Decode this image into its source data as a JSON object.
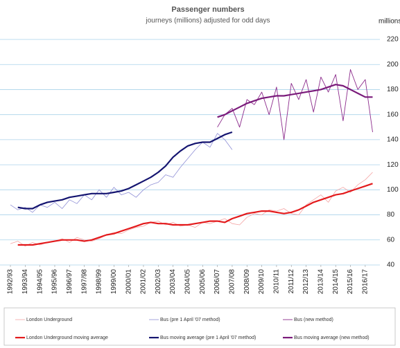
{
  "chart_data": {
    "type": "line",
    "title": "Passenger numbers",
    "subtitle": "journeys (millions) adjusted for odd days",
    "y_axis_label": "millions",
    "x": [
      1992,
      1992.5,
      1993,
      1993.5,
      1994,
      1994.5,
      1995,
      1995.5,
      1996,
      1996.5,
      1997,
      1997.5,
      1998,
      1998.5,
      1999,
      1999.5,
      2000,
      2000.5,
      2001,
      2001.5,
      2002,
      2002.5,
      2003,
      2003.5,
      2004,
      2004.5,
      2005,
      2005.5,
      2006,
      2006.5,
      2007,
      2007.5,
      2008,
      2008.5,
      2009,
      2009.5,
      2010,
      2010.5,
      2011,
      2011.5,
      2012,
      2012.5,
      2013,
      2013.5,
      2014,
      2014.5,
      2015,
      2015.5,
      2016,
      2016.5
    ],
    "series": [
      {
        "name": "London Underground",
        "color": "#f4a3a3",
        "width": 0.8,
        "values": [
          57,
          59,
          55,
          58,
          56,
          58,
          59,
          61,
          58,
          62,
          60,
          59,
          61,
          64,
          66,
          65,
          68,
          70,
          71,
          74,
          75,
          72,
          74,
          71,
          72,
          70,
          74,
          73,
          75,
          77,
          73,
          72,
          78,
          81,
          80,
          84,
          83,
          85,
          81,
          80,
          88,
          92,
          96,
          90,
          99,
          102,
          98,
          104,
          108,
          114
        ]
      },
      {
        "name": "Bus (pre 1 April '07 method)",
        "color": "#8f8fd6",
        "width": 0.8,
        "values": [
          88,
          84,
          86,
          82,
          88,
          86,
          90,
          85,
          92,
          89,
          96,
          92,
          100,
          94,
          102,
          96,
          98,
          94,
          100,
          104,
          106,
          112,
          110,
          118,
          125,
          132,
          138,
          134,
          145,
          140,
          132,
          null,
          null,
          null,
          null,
          null,
          null,
          null,
          null,
          null,
          null,
          null,
          null,
          null,
          null,
          null,
          null,
          null,
          null,
          null
        ]
      },
      {
        "name": "Bus (new method)",
        "color": "#8b2a8b",
        "width": 0.9,
        "values": [
          null,
          null,
          null,
          null,
          null,
          null,
          null,
          null,
          null,
          null,
          null,
          null,
          null,
          null,
          null,
          null,
          null,
          null,
          null,
          null,
          null,
          null,
          null,
          null,
          null,
          null,
          null,
          null,
          150,
          160,
          165,
          150,
          172,
          168,
          178,
          160,
          182,
          140,
          185,
          172,
          188,
          162,
          190,
          178,
          192,
          155,
          196,
          180,
          188,
          146
        ]
      },
      {
        "name": "London Underground moving average",
        "color": "#e31a1c",
        "width": 2.2,
        "values": [
          null,
          56,
          56,
          56,
          57,
          58,
          59,
          60,
          60,
          60,
          59,
          60,
          62,
          64,
          65,
          67,
          69,
          71,
          73,
          74,
          73,
          73,
          72,
          72,
          72,
          73,
          74,
          75,
          75,
          74,
          77,
          79,
          81,
          82,
          83,
          83,
          82,
          81,
          82,
          84,
          87,
          90,
          92,
          94,
          96,
          97,
          99,
          101,
          103,
          105
        ]
      },
      {
        "name": "Bus moving average (pre 1 April '07 method)",
        "color": "#141470",
        "width": 2.2,
        "values": [
          null,
          86,
          85,
          85,
          88,
          90,
          91,
          92,
          94,
          95,
          96,
          97,
          97,
          97,
          98,
          99,
          101,
          104,
          107,
          110,
          114,
          119,
          126,
          131,
          135,
          137,
          138,
          138,
          141,
          144,
          146,
          null,
          null,
          null,
          null,
          null,
          null,
          null,
          null,
          null,
          null,
          null,
          null,
          null,
          null,
          null,
          null,
          null,
          null,
          null
        ]
      },
      {
        "name": "Bus moving average (new method)",
        "color": "#7a1a7a",
        "width": 2.2,
        "values": [
          null,
          null,
          null,
          null,
          null,
          null,
          null,
          null,
          null,
          null,
          null,
          null,
          null,
          null,
          null,
          null,
          null,
          null,
          null,
          null,
          null,
          null,
          null,
          null,
          null,
          null,
          null,
          null,
          158,
          160,
          163,
          166,
          169,
          171,
          173,
          174,
          175,
          175,
          176,
          177,
          178,
          179,
          180,
          182,
          184,
          183,
          180,
          177,
          174,
          174
        ]
      }
    ],
    "xlim": [
      1992,
      2016.85
    ],
    "xticks": [
      {
        "value": 1992,
        "label": "1992/93"
      },
      {
        "value": 1993,
        "label": "1993/94"
      },
      {
        "value": 1994,
        "label": "1994/95"
      },
      {
        "value": 1995,
        "label": "1995/96"
      },
      {
        "value": 1996,
        "label": "1996/97"
      },
      {
        "value": 1997,
        "label": "1997/98"
      },
      {
        "value": 1998,
        "label": "1998/99"
      },
      {
        "value": 1999,
        "label": "1999/00"
      },
      {
        "value": 2000,
        "label": "2000/01"
      },
      {
        "value": 2001,
        "label": "2001/02"
      },
      {
        "value": 2002,
        "label": "2002/03"
      },
      {
        "value": 2003,
        "label": "2003/04"
      },
      {
        "value": 2004,
        "label": "2004/05"
      },
      {
        "value": 2005,
        "label": "2005/06"
      },
      {
        "value": 2006,
        "label": "2006/07"
      },
      {
        "value": 2007,
        "label": "2007/08"
      },
      {
        "value": 2008,
        "label": "2008/09"
      },
      {
        "value": 2009,
        "label": "2009/10"
      },
      {
        "value": 2010,
        "label": "2010/11"
      },
      {
        "value": 2011,
        "label": "2011/12"
      },
      {
        "value": 2012,
        "label": "2012/13"
      },
      {
        "value": 2013,
        "label": "2013/14"
      },
      {
        "value": 2014,
        "label": "2014/15"
      },
      {
        "value": 2015,
        "label": "2015/16"
      },
      {
        "value": 2016,
        "label": "2016/17"
      }
    ],
    "ylim": [
      40,
      220
    ],
    "yticks": [
      40,
      60,
      80,
      100,
      120,
      140,
      160,
      180,
      200,
      220
    ],
    "grid": true
  }
}
